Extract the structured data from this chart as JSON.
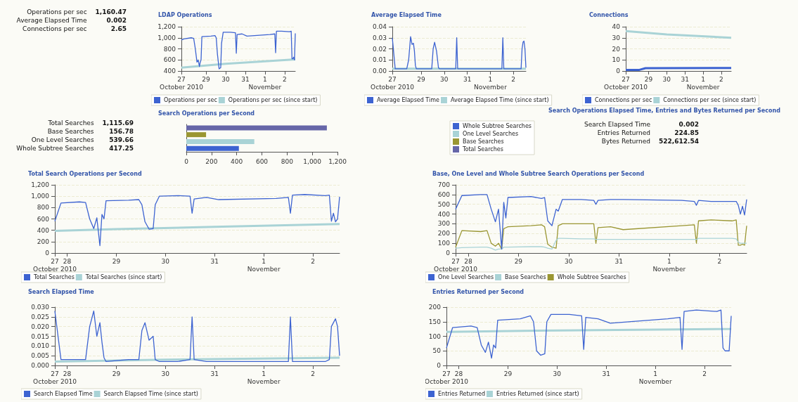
{
  "chart_data": [
    {
      "type": "other",
      "annotations": [
        "Operations per sec",
        "1,160.47",
        "Average Elapsed Time",
        "0.002",
        "Connections per sec",
        "2.65"
      ]
    },
    {
      "type": "line",
      "title": "LDAP Operations",
      "legend": "bottom left",
      "grid": "y",
      "xlim": [
        "2010-10-27T18:00",
        "2010-11-02T13:00"
      ],
      "xticks": [
        {
          "value": "2010-10-27T18:00",
          "label": "27\nOctober 2010"
        },
        {
          "value": "2010-10-29",
          "label": "29"
        },
        {
          "value": "2010-10-30",
          "label": "30"
        },
        {
          "value": "2010-10-31",
          "label": "31"
        },
        {
          "value": "2010-11-01",
          "label": "1\nNovember"
        },
        {
          "value": "2010-11-02",
          "label": "2"
        }
      ],
      "ylim": [
        400,
        1200
      ],
      "yticks": [
        400,
        600,
        800,
        {
          "value": 1000,
          "label": "1,000"
        },
        {
          "value": 1200,
          "label": "1,200"
        }
      ],
      "x": [
        "2010-10-27T18:00",
        "2010-10-27T21:00",
        "2010-10-28T06:00",
        "2010-10-28T09:00",
        "2010-10-28T11:00",
        "2010-10-28T13:00",
        "2010-10-28T14:30",
        "2010-10-28T16:00",
        "2010-10-28T17:00",
        "2010-10-28T18:00",
        "2010-10-28T19:00",
        "2010-10-29T06:00",
        "2010-10-29T11:00",
        "2010-10-29T12:30",
        "2010-10-29T14:00",
        "2010-10-29T16:00",
        "2010-10-29T18:00",
        "2010-10-29T19:00",
        "2010-10-29T21:00",
        "2010-10-30T06:00",
        "2010-10-30T12:00",
        "2010-10-30T13:00",
        "2010-10-30T14:00",
        "2010-10-30T20:00",
        "2010-10-31T02:00",
        "2010-11-01T06:00",
        "2010-11-01T12:00",
        "2010-11-01T13:00",
        "2010-11-01T14:00",
        "2010-11-01T20:00",
        "2010-11-02T06:00",
        "2010-11-02T08:00",
        "2010-11-02T09:00",
        "2010-11-02T10:00",
        "2010-11-02T11:00",
        "2010-11-02T12:00",
        "2010-11-02T13:00"
      ],
      "series": [
        {
          "name": "Operations per sec",
          "color": "#3d63d1",
          "values": [
            960,
            980,
            1000,
            990,
            800,
            560,
            600,
            480,
            560,
            600,
            1020,
            1030,
            1040,
            1000,
            700,
            440,
            460,
            900,
            1100,
            1100,
            1090,
            720,
            1060,
            1070,
            1030,
            1060,
            1070,
            730,
            1120,
            1120,
            1110,
            1120,
            620,
            620,
            650,
            600,
            1080
          ]
        },
        {
          "name": "Operations per sec (since start)",
          "color": "#a9d3d6",
          "x": [
            "2010-10-27T18:00",
            "2010-10-30",
            "2010-11-02T13:00"
          ],
          "values": [
            460,
            530,
            610
          ]
        }
      ]
    },
    {
      "type": "line",
      "title": "Average Elapsed Time",
      "legend": "bottom left",
      "grid": "y",
      "xlim": [
        "2010-10-27T18:00",
        "2010-11-02T13:00"
      ],
      "xticks": [
        {
          "value": "2010-10-27T18:00",
          "label": "27\nOctober 2010"
        },
        {
          "value": "2010-10-29",
          "label": "29"
        },
        {
          "value": "2010-10-30",
          "label": "30"
        },
        {
          "value": "2010-10-31",
          "label": "31"
        },
        {
          "value": "2010-11-01",
          "label": "1\nNovember"
        },
        {
          "value": "2010-11-02",
          "label": "2"
        }
      ],
      "ylim": [
        0,
        0.04
      ],
      "yticks": [
        {
          "value": 0,
          "label": "0.00"
        },
        {
          "value": 0.01,
          "label": "0.01"
        },
        {
          "value": 0.02,
          "label": "0.02"
        },
        {
          "value": 0.03,
          "label": "0.03"
        },
        {
          "value": 0.04,
          "label": "0.04"
        }
      ],
      "x": [
        "2010-10-27T18:00",
        "2010-10-27T21:00",
        "2010-10-28T06:00",
        "2010-10-28T09:00",
        "2010-10-28T11:00",
        "2010-10-28T13:00",
        "2010-10-28T14:30",
        "2010-10-28T16:00",
        "2010-10-28T17:00",
        "2010-10-28T18:00",
        "2010-10-28T19:00",
        "2010-10-29T06:00",
        "2010-10-29T11:00",
        "2010-10-29T12:30",
        "2010-10-29T14:00",
        "2010-10-29T16:00",
        "2010-10-29T18:00",
        "2010-10-29T19:00",
        "2010-10-29T21:00",
        "2010-10-30T06:00",
        "2010-10-30T12:00",
        "2010-10-30T13:00",
        "2010-10-30T14:00",
        "2010-10-30T20:00",
        "2010-10-31T02:00",
        "2010-11-01T06:00",
        "2010-11-01T12:00",
        "2010-11-01T13:00",
        "2010-11-01T14:00",
        "2010-11-01T20:00",
        "2010-11-02T06:00",
        "2010-11-02T08:00",
        "2010-11-02T09:00",
        "2010-11-02T10:00",
        "2010-11-02T11:00",
        "2010-11-02T12:00",
        "2010-11-02T13:00"
      ],
      "series": [
        {
          "name": "Average Elapsed Time",
          "color": "#3d63d1",
          "values": [
            0.03,
            0.002,
            0.002,
            0.002,
            0.01,
            0.031,
            0.024,
            0.025,
            0.018,
            0.005,
            0.002,
            0.002,
            0.002,
            0.02,
            0.026,
            0.018,
            0.003,
            0.002,
            0.002,
            0.002,
            0.002,
            0.03,
            0.002,
            0.002,
            0.002,
            0.002,
            0.002,
            0.03,
            0.002,
            0.002,
            0.002,
            0.002,
            0.02,
            0.026,
            0.027,
            0.02,
            0.003
          ]
        },
        {
          "name": "Average Elapsed Time (since start)",
          "color": "#a9d3d6",
          "x": [
            "2010-10-27T18:00",
            "2010-11-02T13:00"
          ],
          "values": [
            0.002,
            0.002
          ]
        }
      ]
    },
    {
      "type": "line",
      "title": "Connections",
      "legend": "bottom left",
      "grid": "y",
      "xlim": [
        "2010-10-27T18:00",
        "2010-11-02T13:00"
      ],
      "xticks": [
        {
          "value": "2010-10-27T18:00",
          "label": "27\nOctober 2010"
        },
        {
          "value": "2010-10-29",
          "label": "29"
        },
        {
          "value": "2010-10-30",
          "label": "30"
        },
        {
          "value": "2010-10-31",
          "label": "31"
        },
        {
          "value": "2010-11-01",
          "label": "1\nNovember"
        },
        {
          "value": "2010-11-02",
          "label": "2"
        }
      ],
      "ylim": [
        0,
        40
      ],
      "yticks": [
        0,
        10,
        20,
        30,
        40
      ],
      "series": [
        {
          "name": "Connections per sec",
          "color": "#3d63d1",
          "x": [
            "2010-10-27T18:00",
            "2010-10-28T12:00",
            "2010-10-28T20:00",
            "2010-11-02T13:00"
          ],
          "values": [
            1,
            1,
            2.5,
            2.7
          ]
        },
        {
          "name": "Connections per sec (since start)",
          "color": "#a9d3d6",
          "x": [
            "2010-10-27T18:00",
            "2010-10-30",
            "2010-11-02T13:00"
          ],
          "values": [
            36,
            33,
            30
          ]
        }
      ]
    },
    {
      "type": "other",
      "annotations": [
        "Total Searches",
        "1,115.69",
        "Base Searches",
        "156.78",
        "One Level Searches",
        "539.66",
        "Whole Subtree Searches",
        "417.25"
      ]
    },
    {
      "type": "bar",
      "title": "Search Operations per Second",
      "orientation": "horizontal",
      "stacked": true,
      "legend": "right",
      "categories": [
        null,
        null,
        null,
        null
      ],
      "xlim": [
        0,
        1200
      ],
      "xticks": [
        0,
        200,
        400,
        600,
        800,
        {
          "value": 1000,
          "label": "1,000"
        },
        {
          "value": 1200,
          "label": "1,200"
        }
      ],
      "series": [
        {
          "name": "Whole Subtree Searches",
          "color": "#3d63d1",
          "values": [
            null,
            null,
            null,
            417.25
          ]
        },
        {
          "name": "One Level Searches",
          "color": "#a9d3d6",
          "values": [
            null,
            null,
            539.66,
            null
          ]
        },
        {
          "name": "Base Searches",
          "color": "#9a9632",
          "values": [
            null,
            156.78,
            null,
            null
          ]
        },
        {
          "name": "Total Searches",
          "color": "#6666a8",
          "values": [
            1115.69,
            null,
            null,
            null
          ]
        }
      ]
    },
    {
      "type": "other",
      "title": "Search Operations Elapsed Time, Entries and Bytes Returned per Second",
      "annotations": [
        "Search Elapsed Time",
        "0.002",
        "Entries Returned",
        "224.85",
        "Bytes Returned",
        "522,612.54"
      ]
    },
    {
      "type": "line",
      "title": "Total Search Operations per Second",
      "legend": "bottom left",
      "grid": "y",
      "xlim": [
        "2010-10-27T18:00",
        "2010-11-02T13:00"
      ],
      "xticks": [
        {
          "value": "2010-10-27T18:00",
          "label": "27\nOctober 2010"
        },
        {
          "value": "2010-10-28",
          "label": "28"
        },
        {
          "value": "2010-10-29",
          "label": "29"
        },
        {
          "value": "2010-10-30",
          "label": "30"
        },
        {
          "value": "2010-10-31",
          "label": "31"
        },
        {
          "value": "2010-11-01",
          "label": "1\nNovember"
        },
        {
          "value": "2010-11-02",
          "label": "2"
        }
      ],
      "ylim": [
        0,
        1200
      ],
      "yticks": [
        0,
        200,
        400,
        600,
        800,
        {
          "value": 1000,
          "label": "1,000"
        },
        {
          "value": 1200,
          "label": "1,200"
        }
      ],
      "x": [
        "2010-10-27T18:00",
        "2010-10-27T21:00",
        "2010-10-28T06:00",
        "2010-10-28T09:00",
        "2010-10-28T11:00",
        "2010-10-28T13:00",
        "2010-10-28T14:30",
        "2010-10-28T16:00",
        "2010-10-28T17:00",
        "2010-10-28T18:00",
        "2010-10-28T19:00",
        "2010-10-29T06:00",
        "2010-10-29T11:00",
        "2010-10-29T12:30",
        "2010-10-29T14:00",
        "2010-10-29T16:00",
        "2010-10-29T18:00",
        "2010-10-29T19:00",
        "2010-10-29T21:00",
        "2010-10-30T06:00",
        "2010-10-30T12:00",
        "2010-10-30T13:00",
        "2010-10-30T14:00",
        "2010-10-30T20:00",
        "2010-10-31T02:00",
        "2010-11-01T06:00",
        "2010-11-01T12:00",
        "2010-11-01T13:00",
        "2010-11-01T14:00",
        "2010-11-01T20:00",
        "2010-11-02T06:00",
        "2010-11-02T08:00",
        "2010-11-02T09:00",
        "2010-11-02T10:00",
        "2010-11-02T11:00",
        "2010-11-02T12:00",
        "2010-11-02T13:00"
      ],
      "series": [
        {
          "name": "Total Searches",
          "color": "#3d63d1",
          "values": [
            560,
            880,
            900,
            890,
            600,
            430,
            620,
            130,
            680,
            600,
            920,
            930,
            940,
            850,
            550,
            420,
            430,
            850,
            1000,
            1010,
            1000,
            700,
            950,
            980,
            940,
            960,
            980,
            700,
            1020,
            1030,
            1010,
            1020,
            560,
            700,
            550,
            600,
            990
          ]
        },
        {
          "name": "Total Searches (since start)",
          "color": "#a9d3d6",
          "x": [
            "2010-10-27T18:00",
            "2010-10-29",
            "2010-10-31",
            "2010-11-02T13:00"
          ],
          "values": [
            390,
            420,
            460,
            510
          ]
        }
      ]
    },
    {
      "type": "line",
      "title": "Base, One Level and Whole Subtree Search Operations per Second",
      "legend": "bottom left",
      "grid": "y",
      "xlim": [
        "2010-10-27T18:00",
        "2010-11-02T13:00"
      ],
      "xticks": [
        {
          "value": "2010-10-27T18:00",
          "label": "27\nOctober 2010"
        },
        {
          "value": "2010-10-28",
          "label": "28"
        },
        {
          "value": "2010-10-29",
          "label": "29"
        },
        {
          "value": "2010-10-30",
          "label": "30"
        },
        {
          "value": "2010-10-31",
          "label": "31"
        },
        {
          "value": "2010-11-01",
          "label": "1\nNovember"
        },
        {
          "value": "2010-11-02",
          "label": "2"
        }
      ],
      "ylim": [
        0,
        700
      ],
      "yticks": [
        0,
        100,
        200,
        300,
        400,
        500,
        600,
        700
      ],
      "x": [
        "2010-10-27T18:00",
        "2010-10-27T21:00",
        "2010-10-28T06:00",
        "2010-10-28T09:00",
        "2010-10-28T11:00",
        "2010-10-28T13:00",
        "2010-10-28T14:30",
        "2010-10-28T16:00",
        "2010-10-28T17:00",
        "2010-10-28T18:00",
        "2010-10-28T19:00",
        "2010-10-29T06:00",
        "2010-10-29T11:00",
        "2010-10-29T12:30",
        "2010-10-29T14:00",
        "2010-10-29T16:00",
        "2010-10-29T18:00",
        "2010-10-29T19:00",
        "2010-10-29T21:00",
        "2010-10-30T06:00",
        "2010-10-30T12:00",
        "2010-10-30T13:00",
        "2010-10-30T14:00",
        "2010-10-30T20:00",
        "2010-10-31T02:00",
        "2010-11-01T06:00",
        "2010-11-01T12:00",
        "2010-11-01T13:00",
        "2010-11-01T14:00",
        "2010-11-01T20:00",
        "2010-11-02T06:00",
        "2010-11-02T08:00",
        "2010-11-02T09:00",
        "2010-11-02T10:00",
        "2010-11-02T11:00",
        "2010-11-02T12:00",
        "2010-11-02T13:00"
      ],
      "series": [
        {
          "name": "One Level Searches",
          "color": "#3d63d1",
          "values": [
            450,
            590,
            600,
            600,
            450,
            320,
            450,
            40,
            520,
            360,
            570,
            580,
            560,
            570,
            330,
            280,
            450,
            430,
            550,
            550,
            540,
            500,
            540,
            550,
            550,
            540,
            530,
            490,
            540,
            530,
            530,
            530,
            490,
            400,
            480,
            390,
            550
          ]
        },
        {
          "name": "Base Searches",
          "color": "#a9d3d6",
          "values": [
            50,
            55,
            60,
            60,
            50,
            30,
            40,
            40,
            60,
            60,
            60,
            65,
            65,
            60,
            50,
            40,
            130,
            150,
            150,
            145,
            145,
            140,
            140,
            140,
            140,
            140,
            140,
            140,
            150,
            150,
            150,
            145,
            110,
            100,
            100,
            100,
            100
          ]
        },
        {
          "name": "Whole Subtree Searches",
          "color": "#9a9632",
          "values": [
            60,
            230,
            220,
            230,
            100,
            70,
            100,
            40,
            250,
            260,
            270,
            280,
            290,
            270,
            90,
            60,
            50,
            280,
            300,
            300,
            300,
            100,
            260,
            270,
            240,
            280,
            290,
            100,
            330,
            340,
            330,
            340,
            80,
            80,
            90,
            80,
            280
          ]
        }
      ]
    },
    {
      "type": "line",
      "title": "Search Elapsed Time",
      "legend": "bottom left",
      "grid": "y",
      "xlim": [
        "2010-10-27T18:00",
        "2010-11-02T13:00"
      ],
      "xticks": [
        {
          "value": "2010-10-27T18:00",
          "label": "27\nOctober 2010"
        },
        {
          "value": "2010-10-28",
          "label": "28"
        },
        {
          "value": "2010-10-29",
          "label": "29"
        },
        {
          "value": "2010-10-30",
          "label": "30"
        },
        {
          "value": "2010-10-31",
          "label": "31"
        },
        {
          "value": "2010-11-01",
          "label": "1\nNovember"
        },
        {
          "value": "2010-11-02",
          "label": "2"
        }
      ],
      "ylim": [
        0,
        0.03
      ],
      "yticks": [
        {
          "value": 0,
          "label": "0.000"
        },
        {
          "value": 0.005,
          "label": "0.005"
        },
        {
          "value": 0.01,
          "label": "0.010"
        },
        {
          "value": 0.015,
          "label": "0.015"
        },
        {
          "value": 0.02,
          "label": "0.020"
        },
        {
          "value": 0.025,
          "label": "0.025"
        },
        {
          "value": 0.03,
          "label": "0.030"
        }
      ],
      "x": [
        "2010-10-27T18:00",
        "2010-10-27T21:00",
        "2010-10-28T06:00",
        "2010-10-28T09:00",
        "2010-10-28T11:00",
        "2010-10-28T13:00",
        "2010-10-28T14:30",
        "2010-10-28T16:00",
        "2010-10-28T17:00",
        "2010-10-28T18:00",
        "2010-10-28T19:00",
        "2010-10-29T06:00",
        "2010-10-29T11:00",
        "2010-10-29T12:30",
        "2010-10-29T14:00",
        "2010-10-29T16:00",
        "2010-10-29T18:00",
        "2010-10-29T19:00",
        "2010-10-29T21:00",
        "2010-10-30T06:00",
        "2010-10-30T12:00",
        "2010-10-30T13:00",
        "2010-10-30T14:00",
        "2010-10-30T20:00",
        "2010-10-31T02:00",
        "2010-11-01T06:00",
        "2010-11-01T12:00",
        "2010-11-01T13:00",
        "2010-11-01T14:00",
        "2010-11-01T20:00",
        "2010-11-02T06:00",
        "2010-11-02T08:00",
        "2010-11-02T09:00",
        "2010-11-02T10:00",
        "2010-11-02T11:00",
        "2010-11-02T12:00",
        "2010-11-02T13:00"
      ],
      "series": [
        {
          "name": "Search Elapsed Time",
          "color": "#3d63d1",
          "values": [
            0.028,
            0.003,
            0.003,
            0.003,
            0.02,
            0.028,
            0.015,
            0.022,
            0.012,
            0.004,
            0.002,
            0.003,
            0.003,
            0.018,
            0.022,
            0.013,
            0.015,
            0.003,
            0.002,
            0.002,
            0.003,
            0.025,
            0.003,
            0.002,
            0.002,
            0.002,
            0.002,
            0.025,
            0.002,
            0.002,
            0.002,
            0.003,
            0.02,
            0.022,
            0.024,
            0.02,
            0.005
          ]
        },
        {
          "name": "Search Elapsed Time (since start)",
          "color": "#a9d3d6",
          "x": [
            "2010-10-27T18:00",
            "2010-10-30",
            "2010-11-02T13:00"
          ],
          "values": [
            0.002,
            0.003,
            0.004
          ]
        }
      ]
    },
    {
      "type": "line",
      "title": "Entries Returned per Second",
      "legend": "bottom left",
      "grid": "y",
      "xlim": [
        "2010-10-27T18:00",
        "2010-11-02T13:00"
      ],
      "xticks": [
        {
          "value": "2010-10-27T18:00",
          "label": "27\nOctober 2010"
        },
        {
          "value": "2010-10-28",
          "label": "28"
        },
        {
          "value": "2010-10-29",
          "label": "29"
        },
        {
          "value": "2010-10-30",
          "label": "30"
        },
        {
          "value": "2010-10-31",
          "label": "31"
        },
        {
          "value": "2010-11-01",
          "label": "1\nNovember"
        },
        {
          "value": "2010-11-02",
          "label": "2"
        }
      ],
      "ylim": [
        0,
        200
      ],
      "yticks": [
        0,
        50,
        100,
        150,
        200
      ],
      "x": [
        "2010-10-27T18:00",
        "2010-10-27T21:00",
        "2010-10-28T06:00",
        "2010-10-28T09:00",
        "2010-10-28T11:00",
        "2010-10-28T13:00",
        "2010-10-28T14:30",
        "2010-10-28T16:00",
        "2010-10-28T17:00",
        "2010-10-28T18:00",
        "2010-10-28T19:00",
        "2010-10-29T06:00",
        "2010-10-29T11:00",
        "2010-10-29T12:30",
        "2010-10-29T14:00",
        "2010-10-29T16:00",
        "2010-10-29T18:00",
        "2010-10-29T19:00",
        "2010-10-29T21:00",
        "2010-10-30T06:00",
        "2010-10-30T12:00",
        "2010-10-30T13:00",
        "2010-10-30T14:00",
        "2010-10-30T20:00",
        "2010-10-31T02:00",
        "2010-11-01T06:00",
        "2010-11-01T12:00",
        "2010-11-01T13:00",
        "2010-11-01T14:00",
        "2010-11-01T20:00",
        "2010-11-02T06:00",
        "2010-11-02T08:00",
        "2010-11-02T09:00",
        "2010-11-02T10:00",
        "2010-11-02T11:00",
        "2010-11-02T12:00",
        "2010-11-02T13:00"
      ],
      "series": [
        {
          "name": "Entries Returned",
          "color": "#3d63d1",
          "values": [
            60,
            130,
            135,
            130,
            70,
            45,
            80,
            25,
            70,
            60,
            155,
            160,
            170,
            150,
            50,
            35,
            40,
            150,
            175,
            175,
            170,
            55,
            165,
            160,
            145,
            160,
            165,
            55,
            185,
            190,
            185,
            190,
            60,
            50,
            50,
            50,
            170
          ]
        },
        {
          "name": "Entries Returned (since start)",
          "color": "#a9d3d6",
          "x": [
            "2010-10-27T18:00",
            "2010-10-30",
            "2010-11-02T13:00"
          ],
          "values": [
            115,
            120,
            125
          ]
        }
      ]
    }
  ]
}
